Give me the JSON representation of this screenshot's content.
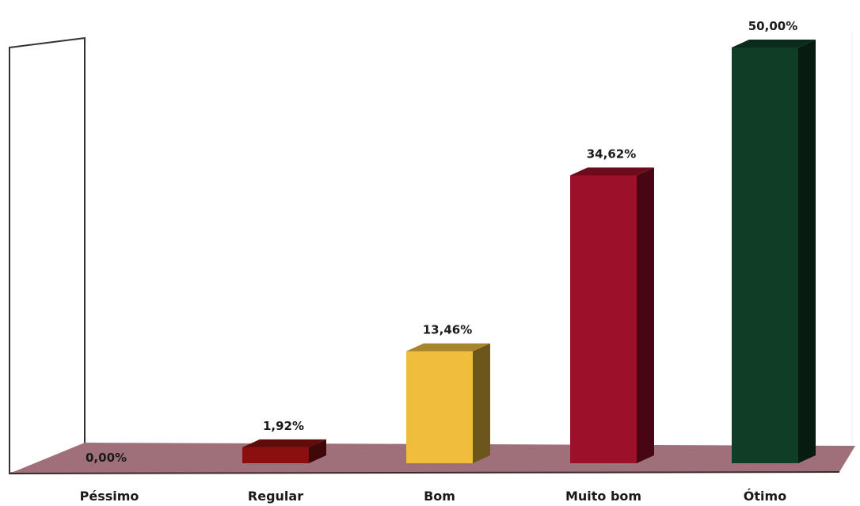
{
  "chart_data": {
    "type": "bar",
    "categories": [
      "Péssimo",
      "Regular",
      "Bom",
      "Muito bom",
      "Ótimo"
    ],
    "values": [
      0.0,
      1.92,
      13.46,
      34.62,
      50.0
    ],
    "data_labels": [
      "0,00%",
      "1,92%",
      "13,46%",
      "34,62%",
      "50,00%"
    ],
    "unit": "%",
    "title": "",
    "xlabel": "",
    "ylabel": "",
    "ylim": [
      0,
      50
    ],
    "grid": false,
    "legend": "none",
    "three_d": true,
    "colors": [
      "#ffffff",
      "#8b0f0f",
      "#f0be3c",
      "#9c1029",
      "#0f3d26"
    ],
    "floor_color": "#a0707a"
  }
}
